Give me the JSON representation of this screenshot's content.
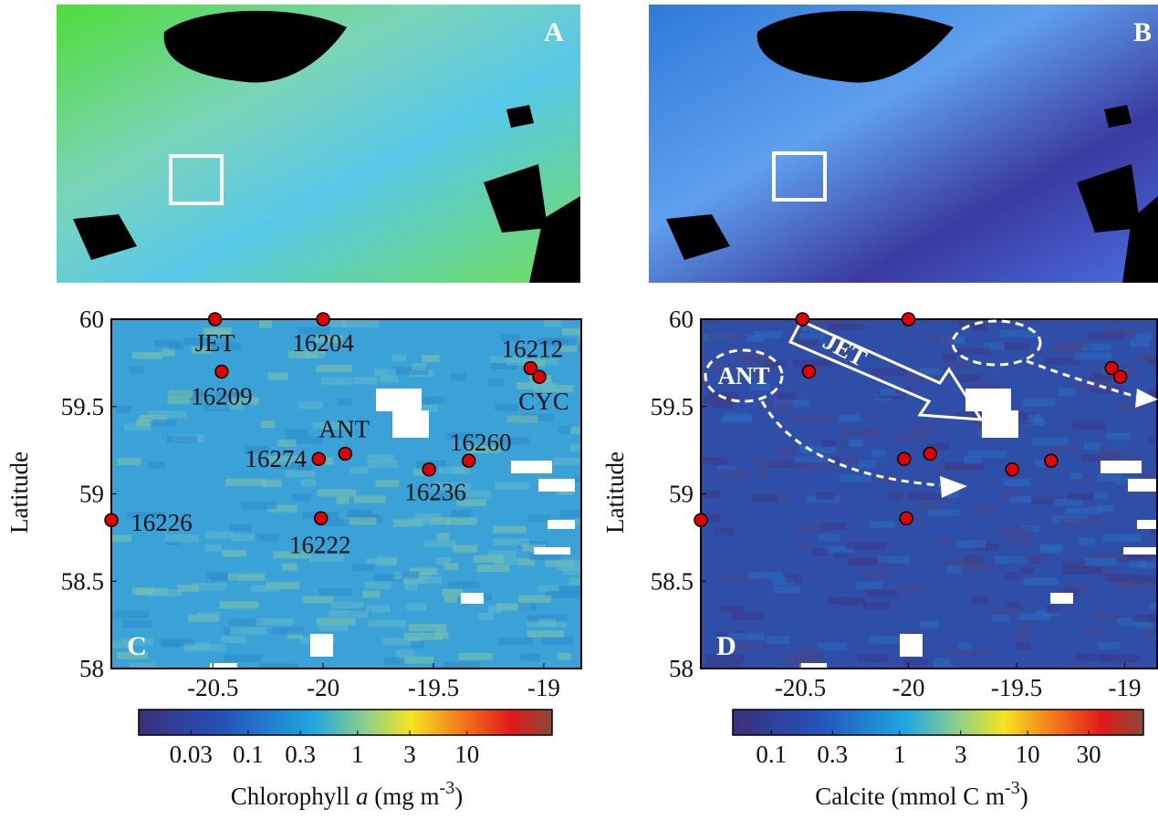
{
  "panels": [
    {
      "label": "A"
    },
    {
      "label": "B"
    }
  ],
  "chart_data": [
    {
      "type": "scatter",
      "panel_label": "C",
      "y_label": "Latitude",
      "xlim": [
        -20.96,
        -18.83
      ],
      "xticks": [
        -20.5,
        -20,
        -19.5,
        -19
      ],
      "ylim": [
        58,
        60
      ],
      "yticks": [
        58,
        58.5,
        59,
        59.5,
        60
      ],
      "series": [
        {
          "color": "#e00000",
          "x": [
            -20.49,
            -20.0,
            -20.46,
            -19.06,
            -19.02,
            -19.9,
            -20.02,
            -19.34,
            -19.52,
            -20.01,
            -20.96
          ],
          "values": [
            60,
            60,
            59.7,
            59.72,
            59.67,
            59.23,
            59.2,
            59.19,
            59.14,
            58.86,
            58.85
          ],
          "point_labels": [
            "JET",
            "16204",
            "16209",
            "16212",
            "CYC",
            "ANT",
            "16274",
            "16260",
            "16236",
            "16222",
            "16226"
          ]
        }
      ],
      "colorbar": {
        "log": true,
        "clim": [
          0.01,
          60
        ],
        "ticks": [
          0.03,
          0.1,
          0.3,
          1,
          3,
          10
        ],
        "label": {
          "text": "Chlorophyll ",
          "italic": "a",
          "unit": " (mg m",
          "sup": "-3",
          "end": ")"
        }
      }
    },
    {
      "type": "scatter",
      "panel_label": "D",
      "y_label": "Latitude",
      "xlim": [
        -20.96,
        -18.85
      ],
      "xticks": [
        -20.5,
        -20,
        -19.5,
        -19
      ],
      "ylim": [
        58,
        60
      ],
      "yticks": [
        58,
        58.5,
        59,
        59.5,
        60
      ],
      "series": [
        {
          "color": "#e00000",
          "x": [
            -20.49,
            -20.0,
            -20.46,
            -19.06,
            -19.02,
            -20.02,
            -19.9,
            -19.34,
            -19.52,
            -20.01,
            -20.96
          ],
          "values": [
            60,
            60,
            59.7,
            59.72,
            59.67,
            59.2,
            59.23,
            59.19,
            59.14,
            58.86,
            58.85
          ]
        }
      ],
      "annotations": [
        "JET",
        "ANT"
      ],
      "colorbar": {
        "log": true,
        "clim": [
          0.05,
          80
        ],
        "ticks": [
          0.1,
          0.3,
          1,
          3,
          10,
          30
        ],
        "label": {
          "text": "Calcite (mmol C m",
          "sup": "-3",
          "end": ")"
        }
      }
    }
  ]
}
